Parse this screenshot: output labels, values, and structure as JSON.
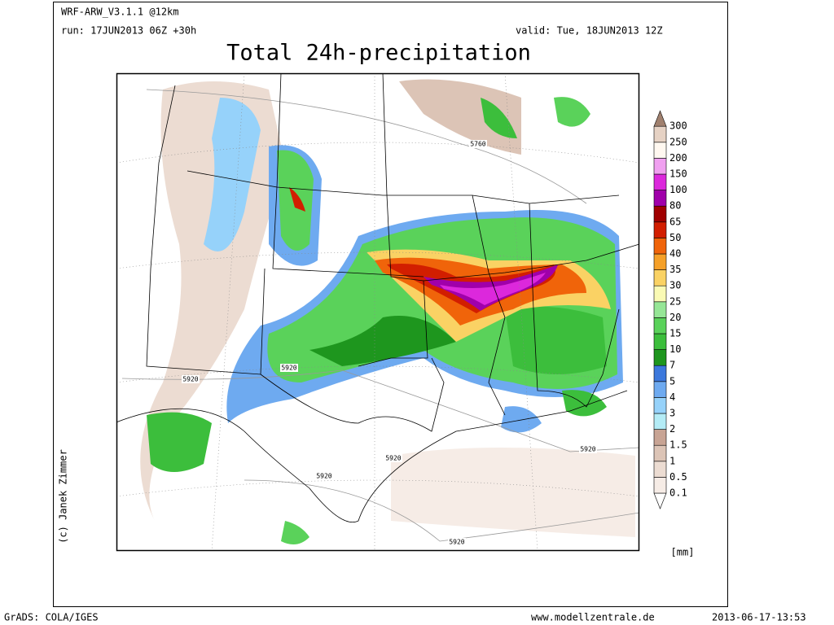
{
  "header": {
    "model": "WRF-ARW_V3.1.1 @12km",
    "run": "run: 17JUN2013 06Z +30h",
    "valid": "valid: Tue, 18JUN2013 12Z",
    "title": "Total 24h-precipitation"
  },
  "map": {
    "contour_labels": [
      5760,
      5920,
      5920,
      5920,
      5920,
      5920,
      5920
    ],
    "credit": "(c) Janek Zimmer"
  },
  "colorbar": {
    "levels": [
      0.1,
      0.5,
      1,
      1.5,
      2,
      3,
      4,
      5,
      7,
      10,
      15,
      20,
      25,
      30,
      35,
      40,
      50,
      65,
      80,
      100,
      150,
      200,
      250,
      300
    ],
    "colors": [
      "#ffffff",
      "#f6ece6",
      "#ecdcd2",
      "#dcc4b6",
      "#c8a494",
      "#b4ecf6",
      "#96d2fa",
      "#6eaaf0",
      "#3c78dc",
      "#1e961e",
      "#3cbe3c",
      "#5ad25a",
      "#96e696",
      "#fafab4",
      "#fad264",
      "#f5a028",
      "#f0640a",
      "#d21e00",
      "#a00000",
      "#a000aa",
      "#dc28dc",
      "#f0a0f0",
      "#fff8f0",
      "#e6d2c4",
      "#a0806e"
    ],
    "unit": "[mm]"
  },
  "footer": {
    "software": "GrADS: COLA/IGES",
    "website": "www.modellzentrale.de",
    "timestamp": "2013-06-17-13:53"
  }
}
